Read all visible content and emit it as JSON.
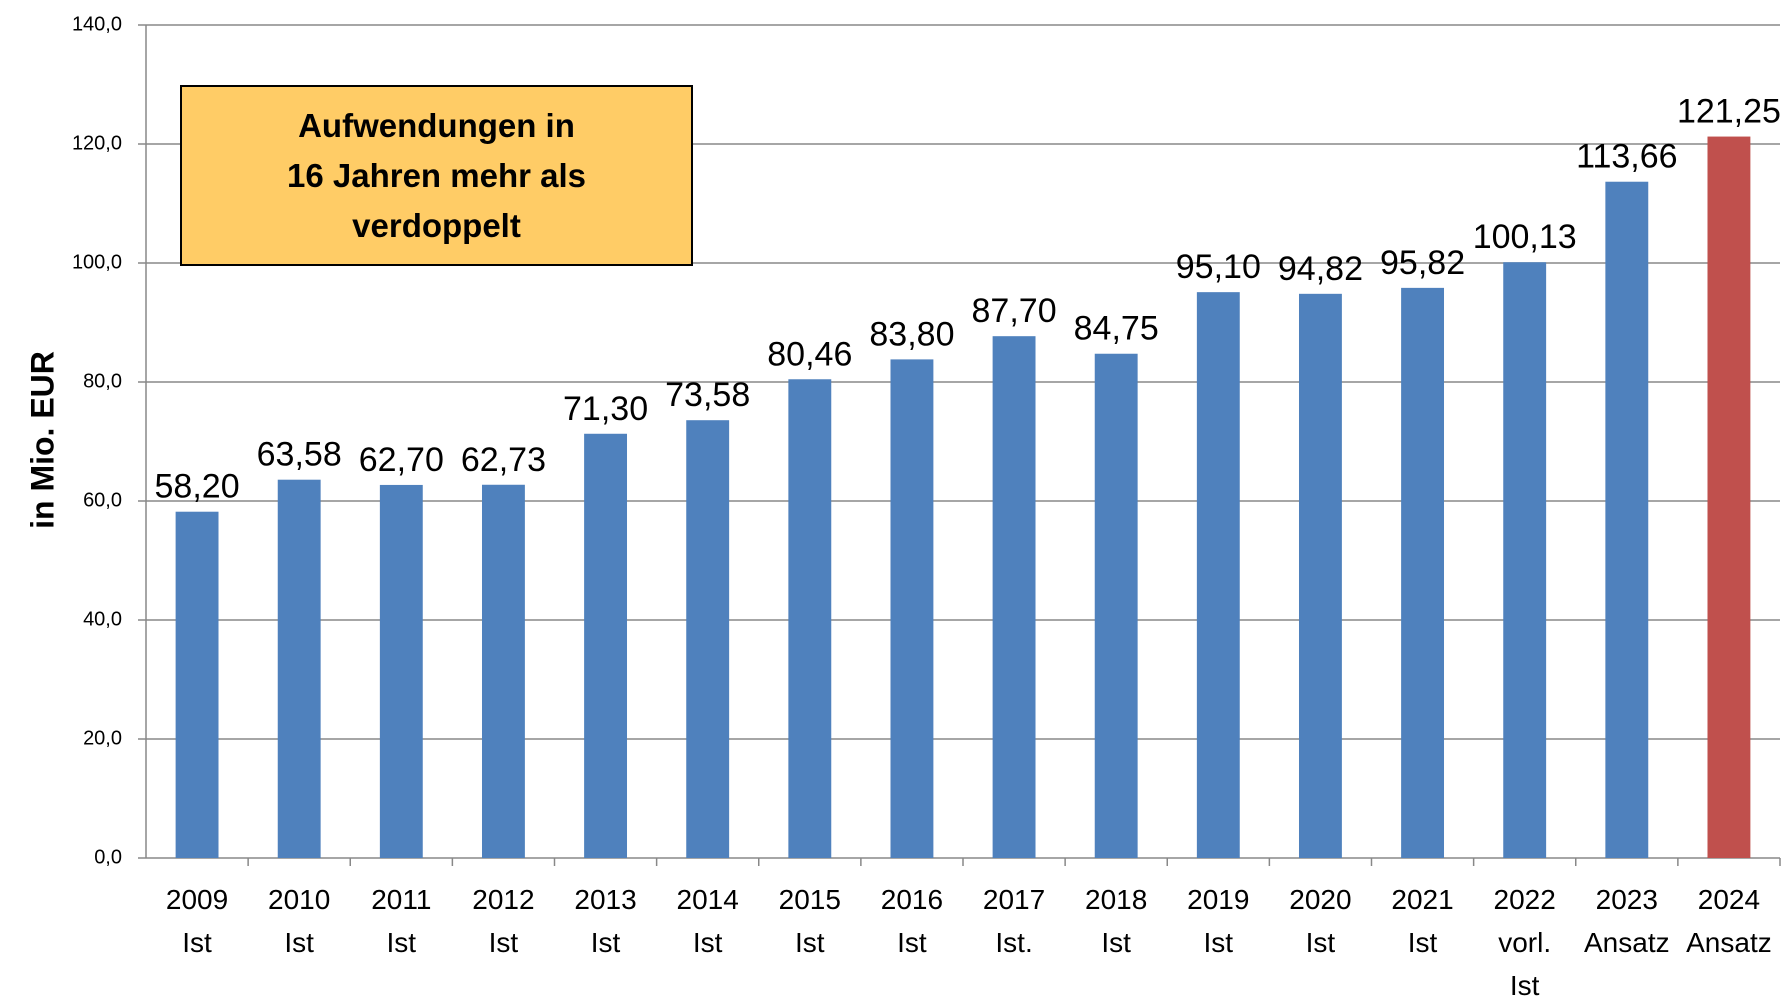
{
  "chart_data": {
    "type": "bar",
    "y_axis_label": "in Mio. EUR",
    "annotation": "Aufwendungen in\n16 Jahren mehr als\nverdoppelt",
    "categories": [
      "2009\nIst",
      "2010\nIst",
      "2011\nIst",
      "2012\nIst",
      "2013\nIst",
      "2014\nIst",
      "2015\nIst",
      "2016\nIst",
      "2017\nIst.",
      "2018\nIst",
      "2019\nIst",
      "2020\nIst",
      "2021\nIst",
      "2022\nvorl.\nIst",
      "2023\nAnsatz",
      "2024\nAnsatz"
    ],
    "values": [
      58.2,
      63.58,
      62.7,
      62.73,
      71.3,
      73.58,
      80.46,
      83.8,
      87.7,
      84.75,
      95.1,
      94.82,
      95.82,
      100.13,
      113.66,
      121.25
    ],
    "value_labels": [
      "58,20",
      "63,58",
      "62,70",
      "62,73",
      "71,30",
      "73,58",
      "80,46",
      "83,80",
      "87,70",
      "84,75",
      "95,10",
      "94,82",
      "95,82",
      "100,13",
      "113,66",
      "121,25"
    ],
    "colors": [
      "#4f81bd",
      "#4f81bd",
      "#4f81bd",
      "#4f81bd",
      "#4f81bd",
      "#4f81bd",
      "#4f81bd",
      "#4f81bd",
      "#4f81bd",
      "#4f81bd",
      "#4f81bd",
      "#4f81bd",
      "#4f81bd",
      "#4f81bd",
      "#4f81bd",
      "#c0504d"
    ],
    "ylim": [
      0,
      140
    ],
    "yticks": [
      {
        "value": 0,
        "label": "0,0"
      },
      {
        "value": 20,
        "label": "20,0"
      },
      {
        "value": 40,
        "label": "40,0"
      },
      {
        "value": 60,
        "label": "60,0"
      },
      {
        "value": 80,
        "label": "80,0"
      },
      {
        "value": 100,
        "label": "100,0"
      },
      {
        "value": 120,
        "label": "120,0"
      },
      {
        "value": 140,
        "label": "140,0"
      }
    ],
    "grid": true
  }
}
